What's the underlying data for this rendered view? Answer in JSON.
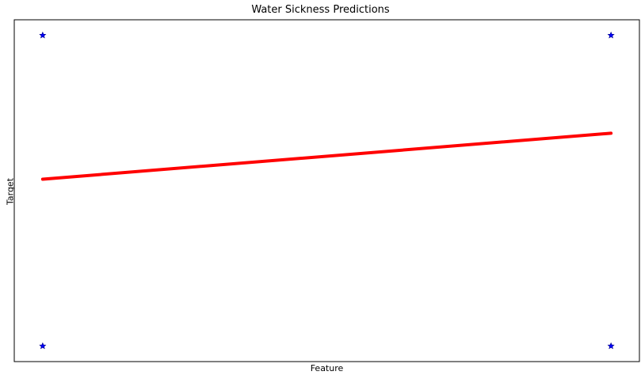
{
  "chart_data": {
    "type": "scatter",
    "title": "Water Sickness Predictions",
    "xlabel": "Feature",
    "ylabel": "Target",
    "xlim": [
      -0.05,
      1.05
    ],
    "ylim": [
      -0.05,
      1.05
    ],
    "grid": false,
    "legend": "none",
    "x_ticks_shown": false,
    "y_ticks_shown": false,
    "series": [
      {
        "type": "scatter",
        "marker": "star",
        "color": "#0000ff",
        "points": [
          {
            "x": 0,
            "y": 1
          },
          {
            "x": 1,
            "y": 1
          },
          {
            "x": 0,
            "y": 0
          },
          {
            "x": 1,
            "y": 0
          }
        ]
      },
      {
        "type": "line",
        "color": "#ff0000",
        "points": [
          {
            "x": 0,
            "y": 0.537
          },
          {
            "x": 1,
            "y": 0.685
          }
        ]
      }
    ]
  }
}
